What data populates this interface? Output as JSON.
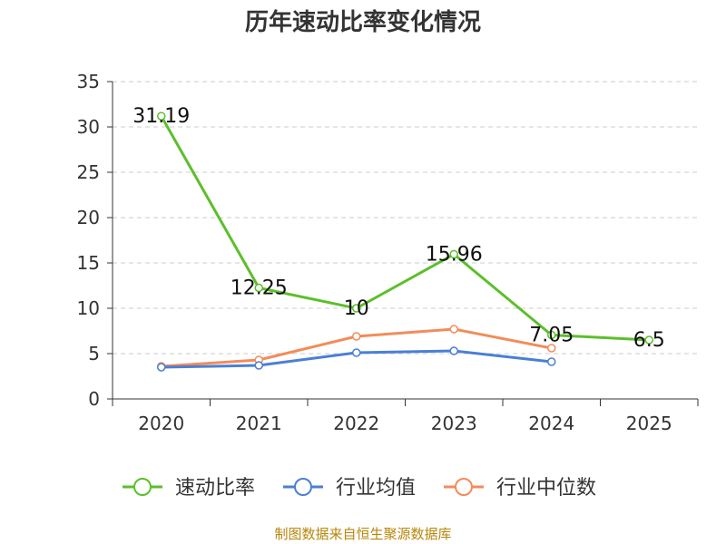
{
  "title": "历年速动比率变化情况",
  "source": "制图数据来自恒生聚源数据库",
  "chart_data": {
    "type": "line",
    "title": "历年速动比率变化情况",
    "categories": [
      "2020",
      "2021",
      "2022",
      "2023",
      "2024",
      "2025"
    ],
    "ylim": [
      0,
      35
    ],
    "yticks": [
      0,
      5,
      10,
      15,
      20,
      25,
      30,
      35
    ],
    "grid": true,
    "legend_position": "bottom",
    "series": [
      {
        "name": "速动比率",
        "color": "#5cbf2a",
        "values": [
          31.19,
          12.25,
          10,
          15.96,
          7.05,
          6.5
        ],
        "labels": [
          "31.19",
          "12.25",
          "10",
          "15.96",
          "7.05",
          "6.5"
        ]
      },
      {
        "name": "行业均值",
        "color": "#4a7fd4",
        "values": [
          3.5,
          3.7,
          5.1,
          5.3,
          4.1,
          null
        ],
        "labels": []
      },
      {
        "name": "行业中位数",
        "color": "#f28c5a",
        "values": [
          3.6,
          4.3,
          6.9,
          7.7,
          5.6,
          null
        ],
        "labels": []
      }
    ]
  }
}
